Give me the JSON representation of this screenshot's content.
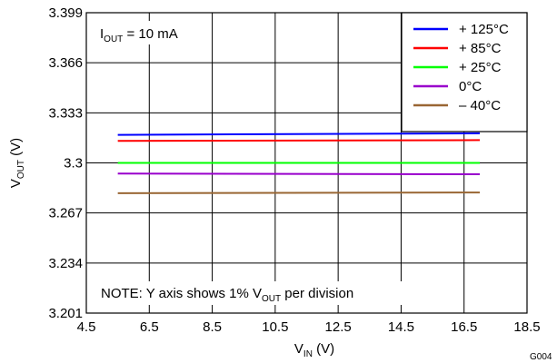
{
  "chart_data": {
    "type": "line",
    "x_axis": {
      "label_main": "V",
      "label_sub": "IN",
      "label_unit": " (V)",
      "range": [
        4.5,
        18.5
      ],
      "ticks": [
        4.5,
        6.5,
        8.5,
        10.5,
        12.5,
        14.5,
        16.5,
        18.5
      ],
      "tick_labels": [
        "4.5",
        "6.5",
        "8.5",
        "10.5",
        "12.5",
        "14.5",
        "16.5",
        "18.5"
      ]
    },
    "y_axis": {
      "label_main": "V",
      "label_sub": "OUT",
      "label_unit": " (V)",
      "range": [
        3.201,
        3.399
      ],
      "ticks": [
        3.201,
        3.234,
        3.267,
        3.3,
        3.333,
        3.366,
        3.399
      ],
      "tick_labels": [
        "3.201",
        "3.234",
        "3.267",
        "3.3",
        "3.333",
        "3.366",
        "3.399"
      ]
    },
    "grid": true,
    "legend_position": "top-right",
    "series": [
      {
        "name": "+ 125°C",
        "color": "#0000ff",
        "x": [
          5.5,
          17.0
        ],
        "y": [
          3.3185,
          3.3195
        ]
      },
      {
        "name": "+ 85°C",
        "color": "#ff0000",
        "x": [
          5.5,
          17.0
        ],
        "y": [
          3.3145,
          3.315
        ]
      },
      {
        "name": "+ 25°C",
        "color": "#00ff00",
        "x": [
          5.5,
          17.0
        ],
        "y": [
          3.3,
          3.3
        ]
      },
      {
        "name": "0°C",
        "color": "#9900cc",
        "x": [
          5.5,
          17.0
        ],
        "y": [
          3.293,
          3.2925
        ]
      },
      {
        "name": "– 40°C",
        "color": "#996633",
        "x": [
          5.5,
          17.0
        ],
        "y": [
          3.28,
          3.2805
        ]
      }
    ],
    "annotations": {
      "condition_main": "I",
      "condition_sub": "OUT",
      "condition_rest": " = 10 mA",
      "note_pre": "NOTE: Y axis shows 1% V",
      "note_sub": "OUT",
      "note_post": " per division"
    },
    "figure_code": "G004"
  }
}
